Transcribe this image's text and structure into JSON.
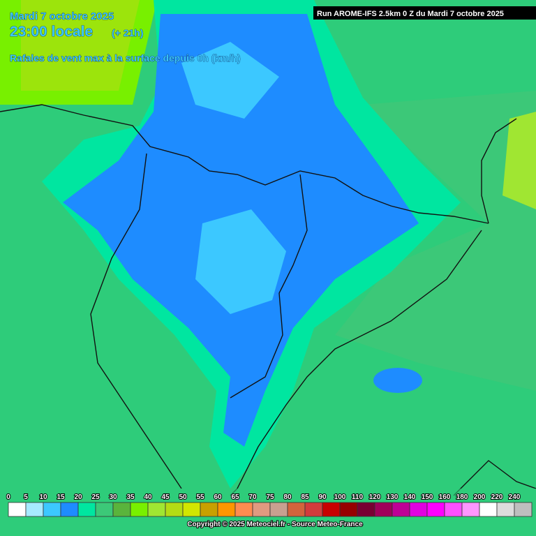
{
  "header": {
    "date": "Mardi 7 octobre 2025",
    "time": "23:00 locale",
    "lead": "(+ 21h)",
    "parameter": "Rafales de vent max à la surface depuis 0h (km/h)",
    "run": "Run AROME-IFS 2.5km 0 Z du Mardi 7 octobre 2025"
  },
  "legend": {
    "labels": [
      0,
      5,
      10,
      15,
      20,
      25,
      30,
      35,
      40,
      45,
      50,
      55,
      60,
      65,
      70,
      75,
      80,
      85,
      90,
      100,
      110,
      120,
      130,
      140,
      150,
      160,
      180,
      200,
      220,
      240
    ],
    "colors": [
      "#ffffff",
      "#a6eaff",
      "#3cc8ff",
      "#1e8cff",
      "#00e6a0",
      "#3cc878",
      "#5ab43c",
      "#78f000",
      "#a0e632",
      "#b4dc14",
      "#d2e600",
      "#c8a000",
      "#ff9600",
      "#ff8c50",
      "#e09a80",
      "#c8a090",
      "#d2643c",
      "#d23c3c",
      "#c80000",
      "#960000",
      "#780032",
      "#a0005a",
      "#be0096",
      "#e100e1",
      "#ff00ff",
      "#ff50ff",
      "#ff96ff",
      "#ffffff",
      "#dcdcdc",
      "#bebebe"
    ]
  },
  "footer": {
    "copyright": "Copyright © 2025 Meteociel.fr - Source Meteo-France"
  }
}
